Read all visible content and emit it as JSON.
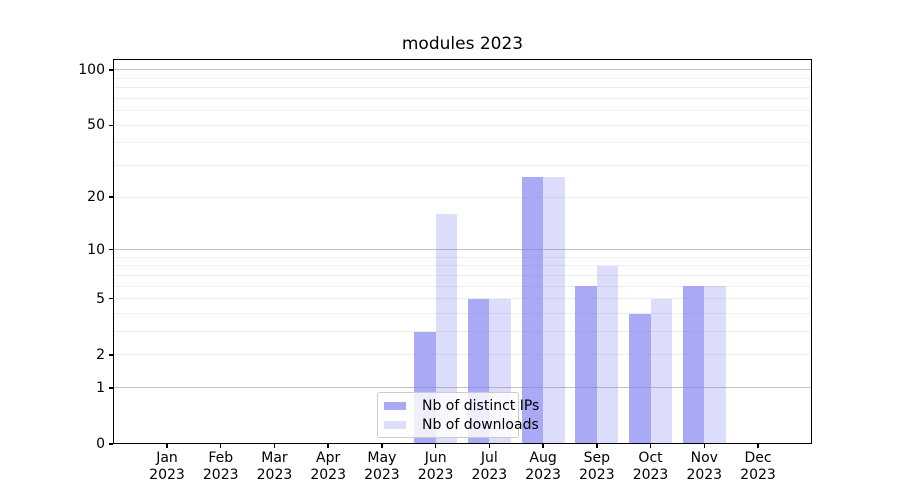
{
  "chart_data": {
    "type": "bar",
    "title": "modules 2023",
    "months": [
      "Jan",
      "Feb",
      "Mar",
      "Apr",
      "May",
      "Jun",
      "Jul",
      "Aug",
      "Sep",
      "Oct",
      "Nov",
      "Dec"
    ],
    "year": "2023",
    "series": [
      {
        "name": "Nb of distinct IPs",
        "values": [
          0,
          0,
          0,
          0,
          0,
          3,
          5,
          26,
          6,
          4,
          6,
          0
        ],
        "color": "rgba(120,120,240,0.64)"
      },
      {
        "name": "Nb of downloads",
        "values": [
          0,
          0,
          0,
          0,
          0,
          16,
          5,
          26,
          8,
          5,
          6,
          0
        ],
        "color": "rgba(120,120,240,0.26)"
      }
    ],
    "y_axis": {
      "scale": "log1p",
      "tick_values": [
        0,
        1,
        2,
        5,
        10,
        20,
        50,
        100
      ],
      "major_gridlines": [
        1,
        10,
        100
      ],
      "minor_gridlines": [
        2,
        3,
        4,
        5,
        6,
        7,
        8,
        9,
        20,
        30,
        40,
        50,
        60,
        70,
        80,
        90
      ],
      "top_value": 114.5
    },
    "legend_entries": [
      "Nb of distinct IPs",
      "Nb of downloads"
    ],
    "legend_position": "bottom-center"
  },
  "colors": {
    "bar_dark": "rgba(120,120,240,0.64)",
    "bar_light": "rgba(120,120,240,0.26)",
    "grid_major": "#c2c2c2",
    "grid_minor": "#ededed",
    "axis": "#000000",
    "background": "#ffffff"
  }
}
